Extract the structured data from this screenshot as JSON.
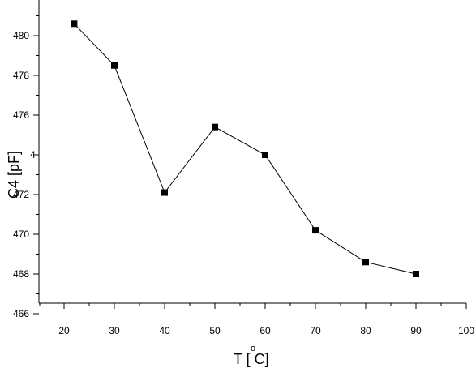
{
  "chart_data": {
    "type": "line",
    "xlabel": "T [ C]",
    "xlabel_degree": "o",
    "ylabel": "C4 [pF]",
    "ylabel_sub": "4",
    "ylabel_stray": "4",
    "xlim": [
      15,
      100
    ],
    "ylim": [
      466,
      481.5
    ],
    "x_ticks": [
      20,
      30,
      40,
      50,
      60,
      70,
      80,
      90,
      100
    ],
    "y_ticks": [
      466,
      468,
      470,
      472,
      474,
      476,
      478,
      480
    ],
    "y_tick_labels": [
      "466",
      "468",
      "470",
      "472",
      "",
      "476",
      "478",
      "480"
    ],
    "grid": false,
    "line_color": "#000000",
    "marker": "square",
    "series": [
      {
        "x": [
          22,
          30,
          40,
          50,
          60,
          70,
          80,
          90
        ],
        "values": [
          480.6,
          478.5,
          472.1,
          475.4,
          474.0,
          470.2,
          468.6,
          468.0
        ]
      }
    ]
  }
}
